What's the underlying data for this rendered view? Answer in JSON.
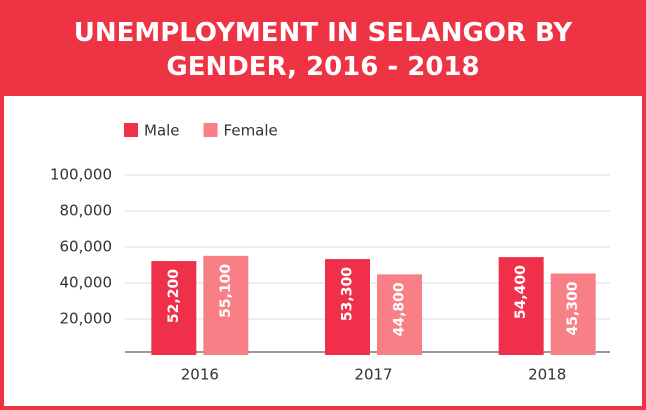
{
  "chart_data": {
    "type": "bar",
    "title": "UNEMPLOYMENT IN SELANGOR BY GENDER, 2016 - 2018",
    "categories": [
      "2016",
      "2017",
      "2018"
    ],
    "series": [
      {
        "name": "Male",
        "color": "#f0304a",
        "values": [
          52200,
          53300,
          54400
        ],
        "value_labels": [
          "52,200",
          "53,300",
          "54,400"
        ]
      },
      {
        "name": "Female",
        "color": "#f87f86",
        "values": [
          55100,
          44800,
          45300
        ],
        "value_labels": [
          "55,100",
          "44,800",
          "45,300"
        ]
      }
    ],
    "ylim": [
      0,
      100000
    ],
    "yticks": [
      {
        "value": 20000,
        "label": "20,000"
      },
      {
        "value": 40000,
        "label": "40,000"
      },
      {
        "value": 60000,
        "label": "60,000"
      },
      {
        "value": 80000,
        "label": "80,000"
      },
      {
        "value": 100000,
        "label": "100,000"
      }
    ],
    "grid": true,
    "legend": "top-left"
  }
}
